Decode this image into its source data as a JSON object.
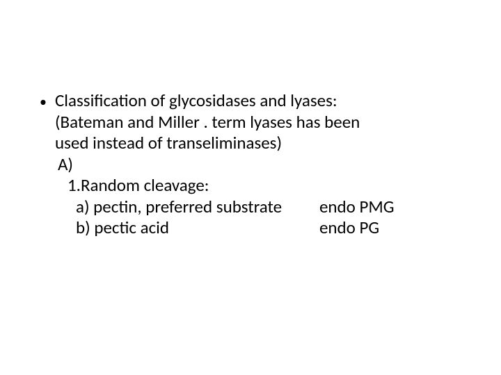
{
  "slide": {
    "bullet_glyph": "•",
    "lines": {
      "l1": "Classification of glycosidases and lyases:",
      "l2": "(Bateman and Miller . term lyases has been",
      "l3": "used instead of transeliminases)",
      "l4": "A)",
      "l5": "1.Random cleavage:",
      "l6a": "a) pectin, preferred substrate",
      "l6b": "endo PMG",
      "l7a": "b) pectic acid",
      "l7b": "endo PG"
    },
    "font_size": 25,
    "text_color": "#000000",
    "background_color": "#ffffff"
  }
}
